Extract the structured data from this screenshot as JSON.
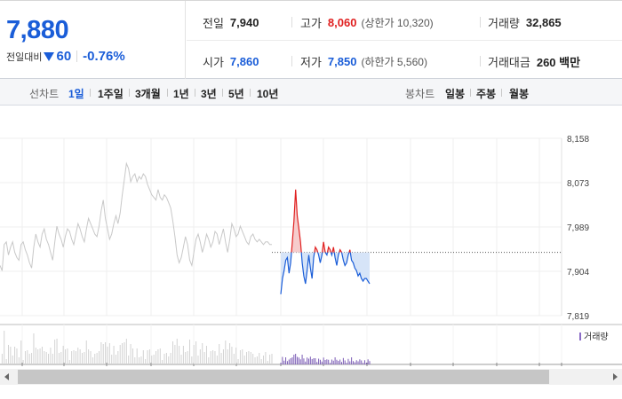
{
  "quote": {
    "price": "7,880",
    "change_label": "전일대비",
    "change_amount": "60",
    "change_percent": "-0.76%",
    "direction": "down"
  },
  "stats": {
    "prev_close_label": "전일",
    "prev_close": "7,940",
    "high_label": "고가",
    "high": "8,060",
    "upper_limit": "(상한가 10,320)",
    "volume_label": "거래량",
    "volume": "32,865",
    "open_label": "시가",
    "open": "7,860",
    "low_label": "저가",
    "low": "7,850",
    "lower_limit": "(하한가 5,560)",
    "value_label": "거래대금",
    "value": "260 백만"
  },
  "toolbar": {
    "line_label": "선차트",
    "line_periods": [
      "1일",
      "1주일",
      "3개월",
      "1년",
      "3년",
      "5년",
      "10년"
    ],
    "active_period": "1일",
    "candle_label": "봉차트",
    "candle_periods": [
      "일봉",
      "주봉",
      "월봉"
    ]
  },
  "colors": {
    "up": "#e02020",
    "down": "#1a5dd8",
    "prev_line": "#c8c8c8",
    "up_fill": "#f6cccc",
    "down_fill": "#d6e4f8"
  },
  "chart_data": {
    "type": "line",
    "y_ticks": [
      "8,158",
      "8,073",
      "7,989",
      "7,904",
      "7,819"
    ],
    "ylim": [
      7819,
      8158
    ],
    "reference_price": 7940,
    "volume_legend": "거래량",
    "series": [
      {
        "role": "previous-day",
        "values": [
          7915,
          7905,
          7955,
          7960,
          7935,
          7950,
          7960,
          7940,
          7930,
          7925,
          7955,
          7960,
          7945,
          7935,
          7920,
          7910,
          7950,
          7975,
          7960,
          7950,
          7975,
          7985,
          7965,
          7955,
          7940,
          7925,
          7960,
          7990,
          7975,
          7965,
          7950,
          7970,
          7985,
          7980,
          7965,
          7955,
          7975,
          7995,
          7985,
          7970,
          7960,
          7985,
          8005,
          7995,
          7985,
          7975,
          7970,
          7990,
          8020,
          8040,
          8005,
          7985,
          7965,
          7975,
          7995,
          8010,
          7995,
          8015,
          8050,
          8080,
          8110,
          8100,
          8075,
          8085,
          8090,
          8075,
          8085,
          8080,
          8090,
          8085,
          8070,
          8060,
          8050,
          8045,
          8040,
          8060,
          8045,
          8040,
          8050,
          8045,
          8035,
          8025,
          8000,
          7970,
          7935,
          7920,
          7930,
          7950,
          7970,
          7955,
          7925,
          7915,
          7940,
          7965,
          7975,
          7960,
          7940,
          7955,
          7975,
          7965,
          7950,
          7960,
          7980,
          7975,
          7955,
          7970,
          7985,
          7960,
          7940,
          7965,
          7995,
          7985,
          7970,
          7975,
          7990,
          7980,
          7970,
          7960,
          7955,
          7970,
          7975,
          7965,
          7960,
          7965,
          7960,
          7955,
          7960,
          7960,
          7955,
          7955
        ]
      },
      {
        "role": "today",
        "values": [
          7860,
          7890,
          7905,
          7925,
          7930,
          7900,
          7920,
          7960,
          8000,
          8060,
          8010,
          7985,
          7960,
          7920,
          7895,
          7880,
          7905,
          7935,
          7910,
          7890,
          7930,
          7950,
          7945,
          7935,
          7920,
          7935,
          7960,
          7940,
          7935,
          7950,
          7945,
          7935,
          7950,
          7930,
          7915,
          7935,
          7945,
          7940,
          7925,
          7915,
          7920,
          7935,
          7945,
          7925,
          7920,
          7910,
          7905,
          7895,
          7900,
          7890,
          7885,
          7890,
          7890,
          7885,
          7880
        ]
      }
    ]
  }
}
